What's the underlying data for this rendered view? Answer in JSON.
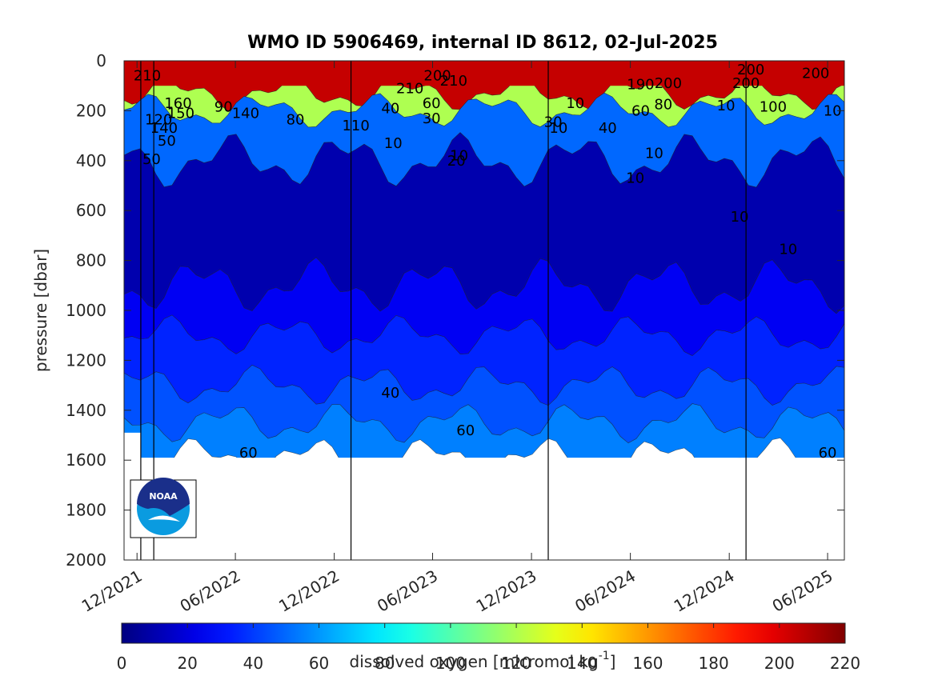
{
  "chart_data": {
    "type": "heatmap",
    "subtype": "filled-contour",
    "title": "WMO ID 5906469, internal ID 8612, 02-Jul-2025",
    "ylabel": "pressure [dbar]",
    "colorbar_label": "dissolved oxygen [micromol kg",
    "colorbar_label_sup": "-1",
    "colorbar_label_end": "]",
    "colormap": "jet",
    "y_reversed": true,
    "ylim": [
      0,
      2000
    ],
    "y_ticks": [
      "0",
      "200",
      "400",
      "600",
      "800",
      "1000",
      "1200",
      "1400",
      "1600",
      "1800",
      "2000"
    ],
    "x_ticks": [
      "12/2021",
      "06/2022",
      "12/2022",
      "06/2023",
      "12/2023",
      "06/2024",
      "12/2024",
      "06/2025"
    ],
    "year_boundaries": [
      "2022-01",
      "2023-01",
      "2024-01",
      "2025-01"
    ],
    "colorbar_range": [
      0,
      220
    ],
    "colorbar_ticks": [
      "0",
      "20",
      "40",
      "60",
      "80",
      "100",
      "120",
      "140",
      "160",
      "180",
      "200",
      "220"
    ],
    "profile_max_depth": [
      {
        "t": "2021-11",
        "p": 1490
      },
      {
        "t": "2021-12-08",
        "p": 1590
      },
      {
        "t": "2025-06",
        "p": 1590
      }
    ],
    "oxygen_layers": [
      {
        "depth_top": 0,
        "depth_bottom": 130,
        "value": 205
      },
      {
        "depth_top": 130,
        "depth_bottom": 200,
        "value": 120
      },
      {
        "depth_top": 200,
        "depth_bottom": 400,
        "value": 50
      },
      {
        "depth_top": 400,
        "depth_bottom": 900,
        "value": 10
      },
      {
        "depth_top": 900,
        "depth_bottom": 1100,
        "value": 25
      },
      {
        "depth_top": 1100,
        "depth_bottom": 1300,
        "value": 35
      },
      {
        "depth_top": 1300,
        "depth_bottom": 1450,
        "value": 45
      },
      {
        "depth_top": 1450,
        "depth_bottom": 1590,
        "value": 55
      }
    ],
    "contour_labels": [
      {
        "text": "210",
        "t": "2021-12-20",
        "p": 60
      },
      {
        "text": "160",
        "t": "2022-02-15",
        "p": 170
      },
      {
        "text": "150",
        "t": "2022-02-20",
        "p": 210
      },
      {
        "text": "120",
        "t": "2022-01-10",
        "p": 235
      },
      {
        "text": "140",
        "t": "2022-01-20",
        "p": 270
      },
      {
        "text": "50",
        "t": "2022-01-25",
        "p": 320
      },
      {
        "text": "50",
        "t": "2021-12-28",
        "p": 395
      },
      {
        "text": "90",
        "t": "2022-05-10",
        "p": 185
      },
      {
        "text": "140",
        "t": "2022-06-20",
        "p": 210
      },
      {
        "text": "80",
        "t": "2022-09-20",
        "p": 235
      },
      {
        "text": "110",
        "t": "2023-01-10",
        "p": 260
      },
      {
        "text": "10",
        "t": "2023-03-20",
        "p": 330
      },
      {
        "text": "40",
        "t": "2023-03-15",
        "p": 190
      },
      {
        "text": "210",
        "t": "2023-04-20",
        "p": 110
      },
      {
        "text": "200",
        "t": "2023-06-10",
        "p": 60
      },
      {
        "text": "210",
        "t": "2023-07-10",
        "p": 80
      },
      {
        "text": "10",
        "t": "2023-07-20",
        "p": 380
      },
      {
        "text": "20",
        "t": "2023-07-15",
        "p": 400
      },
      {
        "text": "30",
        "t": "2023-05-30",
        "p": 230
      },
      {
        "text": "60",
        "t": "2023-05-30",
        "p": 170
      },
      {
        "text": "10",
        "t": "2024-01-20",
        "p": 270
      },
      {
        "text": "30",
        "t": "2024-01-10",
        "p": 245
      },
      {
        "text": "10",
        "t": "2024-02-20",
        "p": 170
      },
      {
        "text": "40",
        "t": "2024-04-20",
        "p": 270
      },
      {
        "text": "60",
        "t": "2024-06-20",
        "p": 200
      },
      {
        "text": "10",
        "t": "2024-06-10",
        "p": 470
      },
      {
        "text": "10",
        "t": "2024-07-15",
        "p": 370
      },
      {
        "text": "190",
        "t": "2024-06-20",
        "p": 95
      },
      {
        "text": "200",
        "t": "2024-08-10",
        "p": 90
      },
      {
        "text": "80",
        "t": "2024-08-01",
        "p": 175
      },
      {
        "text": "10",
        "t": "2024-12-20",
        "p": 625
      },
      {
        "text": "200",
        "t": "2025-01-10",
        "p": 35
      },
      {
        "text": "200",
        "t": "2025-01-01",
        "p": 90
      },
      {
        "text": "10",
        "t": "2024-11-25",
        "p": 180
      },
      {
        "text": "100",
        "t": "2025-02-20",
        "p": 185
      },
      {
        "text": "200",
        "t": "2025-05-10",
        "p": 50
      },
      {
        "text": "10",
        "t": "2025-06-10",
        "p": 200
      },
      {
        "text": "10",
        "t": "2025-03-20",
        "p": 755
      },
      {
        "text": "40",
        "t": "2023-03-15",
        "p": 1330
      },
      {
        "text": "60",
        "t": "2022-06-25",
        "p": 1570
      },
      {
        "text": "60",
        "t": "2023-08-01",
        "p": 1480
      },
      {
        "text": "60",
        "t": "2025-06-01",
        "p": 1570
      }
    ]
  }
}
